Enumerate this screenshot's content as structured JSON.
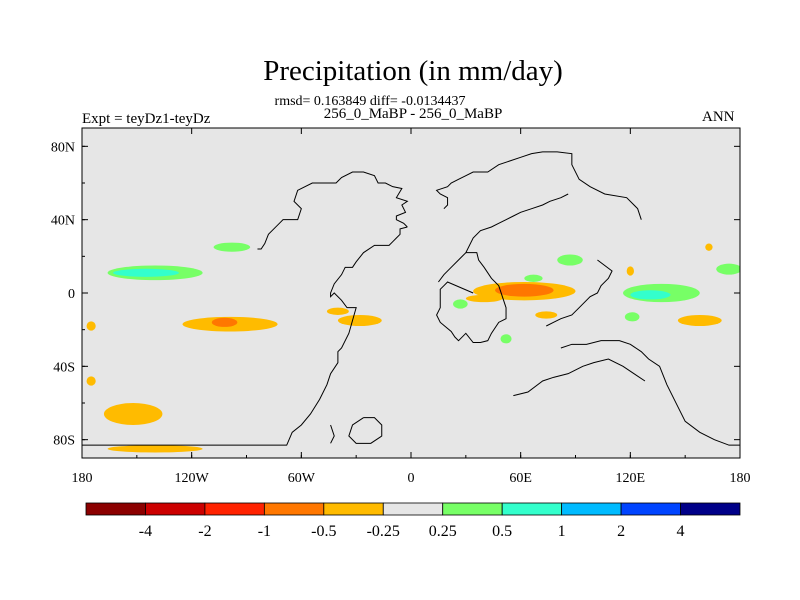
{
  "header": {
    "title": "Precipitation (in mm/day)",
    "stats": "rmsd= 0.163849 diff= -0.0134437",
    "cases": "256_0_MaBP - 256_0_MaBP",
    "expt": "Expt = teyDz1-teyDz",
    "season": "ANN"
  },
  "chart_data": {
    "type": "heatmap",
    "title": "Precipitation (in mm/day)",
    "subtitle": "256_0_MaBP - 256_0_MaBP",
    "rmsd": 0.163849,
    "diff": -0.0134437,
    "season": "ANN",
    "xlim": [
      -180,
      180
    ],
    "ylim": [
      -90,
      90
    ],
    "x_ticks": [
      {
        "value": -180,
        "label": "180"
      },
      {
        "value": -120,
        "label": "120W"
      },
      {
        "value": -60,
        "label": "60W"
      },
      {
        "value": 0,
        "label": "0"
      },
      {
        "value": 60,
        "label": "60E"
      },
      {
        "value": 120,
        "label": "120E"
      },
      {
        "value": 180,
        "label": "180"
      }
    ],
    "y_ticks": [
      {
        "value": 80,
        "label": "80N"
      },
      {
        "value": 40,
        "label": "40N"
      },
      {
        "value": 0,
        "label": "0"
      },
      {
        "value": -40,
        "label": "40S"
      },
      {
        "value": -80,
        "label": "80S"
      }
    ],
    "colorbar": {
      "colors": [
        "#8b0000",
        "#cc0000",
        "#ff2200",
        "#ff7700",
        "#ffbb00",
        "#e6e6e6",
        "#77ff66",
        "#33ffcc",
        "#00bbff",
        "#0044ff",
        "#000088"
      ],
      "labels": [
        "-4",
        "-2",
        "-1",
        "-0.5",
        "-0.25",
        "0.25",
        "0.5",
        "1",
        "2",
        "4"
      ]
    },
    "anomalies": [
      {
        "lon": -140,
        "lat": 11,
        "dlon": 26,
        "dlat": 4,
        "value": 0.4
      },
      {
        "lon": -145,
        "lat": 11,
        "dlon": 18,
        "dlat": 2.2,
        "value": 0.8
      },
      {
        "lon": -98,
        "lat": 25,
        "dlon": 10,
        "dlat": 2.5,
        "value": 0.4
      },
      {
        "lon": -99,
        "lat": -17,
        "dlon": 26,
        "dlat": 4,
        "value": -0.3
      },
      {
        "lon": -102,
        "lat": -16,
        "dlon": 7,
        "dlat": 2.5,
        "value": -0.6
      },
      {
        "lon": -28,
        "lat": -15,
        "dlon": 12,
        "dlat": 3,
        "value": -0.3
      },
      {
        "lon": -40,
        "lat": -10,
        "dlon": 6,
        "dlat": 2,
        "value": -0.3
      },
      {
        "lon": -175,
        "lat": -18,
        "dlon": 2.5,
        "dlat": 2.5,
        "value": -0.3
      },
      {
        "lon": -175,
        "lat": -48,
        "dlon": 2.5,
        "dlat": 2.5,
        "value": -0.3
      },
      {
        "lon": -152,
        "lat": -66,
        "dlon": 16,
        "dlat": 6,
        "value": -0.3
      },
      {
        "lon": -140,
        "lat": -85,
        "dlon": 26,
        "dlat": 2,
        "value": -0.3
      },
      {
        "lon": 62,
        "lat": 1,
        "dlon": 28,
        "dlat": 5,
        "value": -0.3
      },
      {
        "lon": 62,
        "lat": 1.5,
        "dlon": 16,
        "dlat": 3.5,
        "value": -0.6
      },
      {
        "lon": 40,
        "lat": -3,
        "dlon": 10,
        "dlat": 2,
        "value": -0.3
      },
      {
        "lon": 74,
        "lat": -12,
        "dlon": 6,
        "dlat": 2,
        "value": -0.3
      },
      {
        "lon": 27,
        "lat": -6,
        "dlon": 4,
        "dlat": 2.5,
        "value": 0.4
      },
      {
        "lon": 52,
        "lat": -25,
        "dlon": 3,
        "dlat": 2.5,
        "value": 0.4
      },
      {
        "lon": 67,
        "lat": 8,
        "dlon": 5,
        "dlat": 2,
        "value": 0.4
      },
      {
        "lon": 87,
        "lat": 18,
        "dlon": 7,
        "dlat": 3,
        "value": 0.4
      },
      {
        "lon": 137,
        "lat": 0,
        "dlon": 21,
        "dlat": 5,
        "value": 0.4
      },
      {
        "lon": 131,
        "lat": -1,
        "dlon": 11,
        "dlat": 2.5,
        "value": 0.8
      },
      {
        "lon": 158,
        "lat": -15,
        "dlon": 12,
        "dlat": 3,
        "value": -0.3
      },
      {
        "lon": 174,
        "lat": 13,
        "dlon": 7,
        "dlat": 3,
        "value": 0.4
      },
      {
        "lon": 121,
        "lat": -13,
        "dlon": 4,
        "dlat": 2.5,
        "value": 0.4
      },
      {
        "lon": 163,
        "lat": 25,
        "dlon": 2,
        "dlat": 2,
        "value": -0.3
      },
      {
        "lon": 120,
        "lat": 12,
        "dlon": 2,
        "dlat": 2.5,
        "value": -0.3
      }
    ],
    "continents": [
      [
        [
          -180,
          -83
        ],
        [
          -110,
          -83
        ],
        [
          -68,
          -83
        ],
        [
          -65,
          -76
        ],
        [
          -60,
          -72
        ],
        [
          -55,
          -66
        ],
        [
          -50,
          -58
        ],
        [
          -46,
          -50
        ],
        [
          -44,
          -44
        ],
        [
          -40,
          -38
        ],
        [
          -40,
          -32
        ],
        [
          -38,
          -30
        ],
        [
          -34,
          -22
        ],
        [
          -32,
          -15
        ],
        [
          -30,
          -8
        ],
        [
          -35,
          -8
        ],
        [
          -38,
          -4
        ],
        [
          -42,
          0
        ],
        [
          -44,
          -2
        ],
        [
          -44,
          0
        ],
        [
          -42,
          5
        ],
        [
          -38,
          10
        ],
        [
          -36,
          14
        ],
        [
          -32,
          14
        ],
        [
          -30,
          17
        ],
        [
          -26,
          22
        ],
        [
          -20,
          26
        ],
        [
          -12,
          26
        ],
        [
          -10,
          28
        ],
        [
          -8,
          30
        ],
        [
          -6,
          32
        ],
        [
          -6,
          35
        ],
        [
          -2,
          36
        ]
      ],
      [
        [
          -2,
          36
        ],
        [
          -4,
          38
        ],
        [
          -8,
          40
        ],
        [
          -8,
          42
        ],
        [
          -3,
          44
        ],
        [
          -5,
          48
        ],
        [
          -2,
          50
        ],
        [
          -8,
          52
        ],
        [
          -5,
          57
        ],
        [
          -10,
          58
        ],
        [
          -14,
          60
        ],
        [
          -18,
          60
        ],
        [
          -20,
          64
        ],
        [
          -26,
          66
        ],
        [
          -32,
          66
        ],
        [
          -38,
          63
        ],
        [
          -41,
          60
        ],
        [
          -54,
          60
        ],
        [
          -62,
          56
        ],
        [
          -64,
          50
        ],
        [
          -60,
          46
        ],
        [
          -62,
          40
        ],
        [
          -70,
          40
        ],
        [
          -72,
          38
        ],
        [
          -78,
          32
        ],
        [
          -80,
          27
        ],
        [
          -82,
          24
        ],
        [
          -84,
          24
        ]
      ],
      [
        [
          34,
          0
        ],
        [
          20,
          6
        ],
        [
          18,
          4
        ],
        [
          16,
          2
        ],
        [
          16,
          -8
        ],
        [
          14,
          -12
        ],
        [
          16,
          -16
        ],
        [
          22,
          -21
        ],
        [
          24,
          -24
        ],
        [
          26,
          -26
        ],
        [
          30,
          -22
        ],
        [
          34,
          -27
        ],
        [
          38,
          -27
        ],
        [
          42,
          -26
        ],
        [
          44,
          -22
        ],
        [
          48,
          -16
        ],
        [
          52,
          -14
        ],
        [
          52,
          -8
        ],
        [
          50,
          -2
        ],
        [
          48,
          4
        ],
        [
          44,
          8
        ],
        [
          40,
          14
        ],
        [
          37,
          18
        ],
        [
          36,
          22
        ],
        [
          30,
          22
        ]
      ],
      [
        [
          15,
          6
        ],
        [
          18,
          10
        ],
        [
          22,
          14
        ],
        [
          26,
          18
        ],
        [
          30,
          22
        ],
        [
          34,
          30
        ],
        [
          38,
          34
        ],
        [
          44,
          36
        ],
        [
          48,
          38
        ],
        [
          52,
          40
        ],
        [
          56,
          42
        ],
        [
          60,
          44
        ],
        [
          66,
          46
        ],
        [
          72,
          48
        ],
        [
          76,
          50
        ],
        [
          82,
          52
        ],
        [
          86,
          54
        ]
      ],
      [
        [
          18,
          46
        ],
        [
          20,
          48
        ],
        [
          20,
          52
        ],
        [
          16,
          54
        ],
        [
          14,
          56
        ],
        [
          20,
          58
        ],
        [
          22,
          60
        ],
        [
          26,
          62
        ],
        [
          30,
          64
        ],
        [
          34,
          66
        ],
        [
          42,
          66
        ],
        [
          48,
          70
        ],
        [
          54,
          72
        ],
        [
          60,
          74
        ],
        [
          66,
          76
        ],
        [
          72,
          77
        ],
        [
          80,
          77
        ],
        [
          88,
          76
        ],
        [
          88,
          70
        ],
        [
          92,
          62
        ],
        [
          98,
          58
        ],
        [
          106,
          54
        ],
        [
          118,
          52
        ],
        [
          124,
          46
        ],
        [
          126,
          40
        ]
      ],
      [
        [
          102,
          18
        ],
        [
          106,
          15
        ],
        [
          110,
          12
        ],
        [
          108,
          8
        ],
        [
          104,
          4
        ],
        [
          102,
          0
        ],
        [
          98,
          -2
        ],
        [
          92,
          -8
        ],
        [
          88,
          -12
        ],
        [
          82,
          -14
        ],
        [
          78,
          -16
        ],
        [
          74,
          -18
        ]
      ],
      [
        [
          82,
          -30
        ],
        [
          88,
          -28
        ],
        [
          96,
          -28
        ],
        [
          104,
          -26
        ],
        [
          114,
          -26
        ],
        [
          120,
          -28
        ],
        [
          126,
          -32
        ],
        [
          130,
          -36
        ],
        [
          136,
          -40
        ],
        [
          140,
          -50
        ],
        [
          146,
          -62
        ],
        [
          150,
          -70
        ],
        [
          158,
          -76
        ],
        [
          166,
          -80
        ],
        [
          174,
          -83
        ],
        [
          180,
          -83
        ]
      ],
      [
        [
          56,
          -56
        ],
        [
          64,
          -54
        ],
        [
          72,
          -48
        ],
        [
          78,
          -46
        ],
        [
          86,
          -44
        ],
        [
          94,
          -40
        ],
        [
          100,
          -38
        ],
        [
          108,
          -36
        ],
        [
          116,
          -40
        ],
        [
          122,
          -44
        ],
        [
          128,
          -48
        ]
      ],
      [
        [
          -26,
          -68
        ],
        [
          -20,
          -68
        ],
        [
          -16,
          -72
        ],
        [
          -16,
          -78
        ],
        [
          -22,
          -82
        ],
        [
          -30,
          -82
        ],
        [
          -34,
          -78
        ],
        [
          -32,
          -72
        ],
        [
          -26,
          -68
        ]
      ],
      [
        [
          -44,
          -72
        ],
        [
          -42,
          -78
        ],
        [
          -44,
          -82
        ]
      ]
    ]
  }
}
